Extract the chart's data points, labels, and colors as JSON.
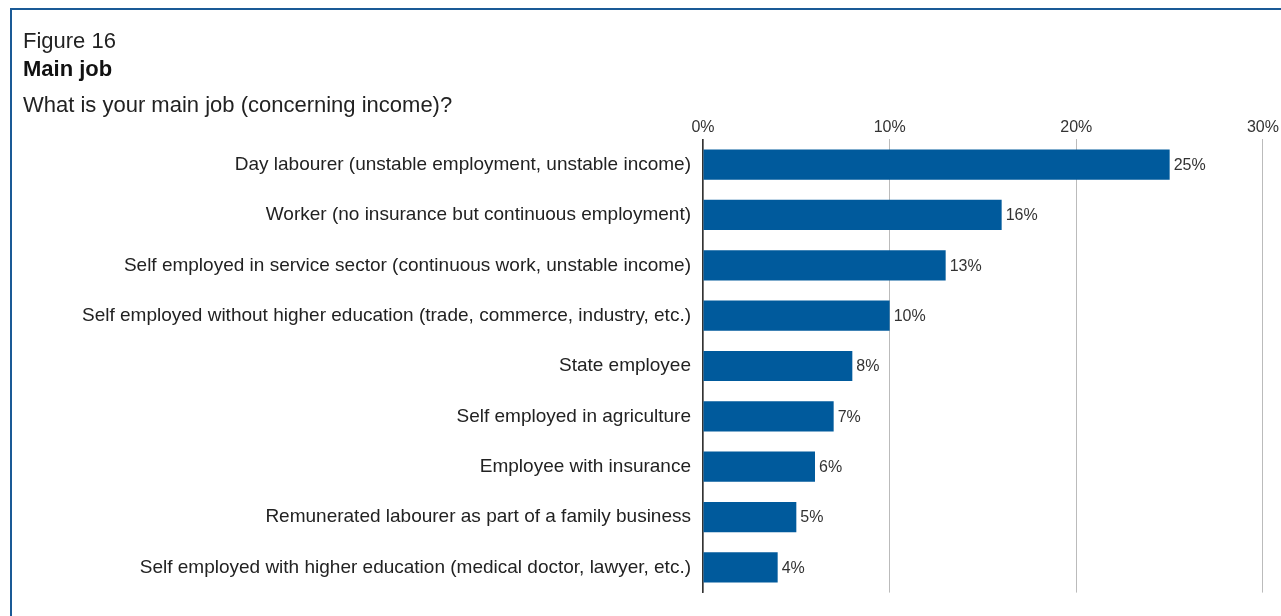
{
  "chart_data": {
    "type": "bar",
    "orientation": "horizontal",
    "title": "Main job",
    "subtitle": "What is your main job (concerning income)?",
    "annotations": [
      "Figure 16"
    ],
    "categories": [
      "Day labourer (unstable employment, unstable income)",
      "Worker (no insurance but continuous employment)",
      "Self employed in service sector (continuous work, unstable income)",
      "Self employed without higher education (trade, commerce, industry, etc.)",
      "State employee",
      "Self employed in agriculture",
      "Employee with insurance",
      "Remunerated labourer as part of a family business",
      "Self employed with higher education (medical doctor, lawyer, etc.)"
    ],
    "values": [
      25,
      16,
      13,
      10,
      8,
      7,
      6,
      5,
      4
    ],
    "value_labels": [
      "25%",
      "16%",
      "13%",
      "10%",
      "8%",
      "7%",
      "6%",
      "5%",
      "4%"
    ],
    "color": "#005a9c",
    "xlim": [
      0,
      30
    ],
    "xticks": [
      {
        "value": 0,
        "label": "0%"
      },
      {
        "value": 10,
        "label": "10%"
      },
      {
        "value": 20,
        "label": "20%"
      },
      {
        "value": 30,
        "label": "30%"
      }
    ],
    "grid": "x",
    "legend": false
  }
}
